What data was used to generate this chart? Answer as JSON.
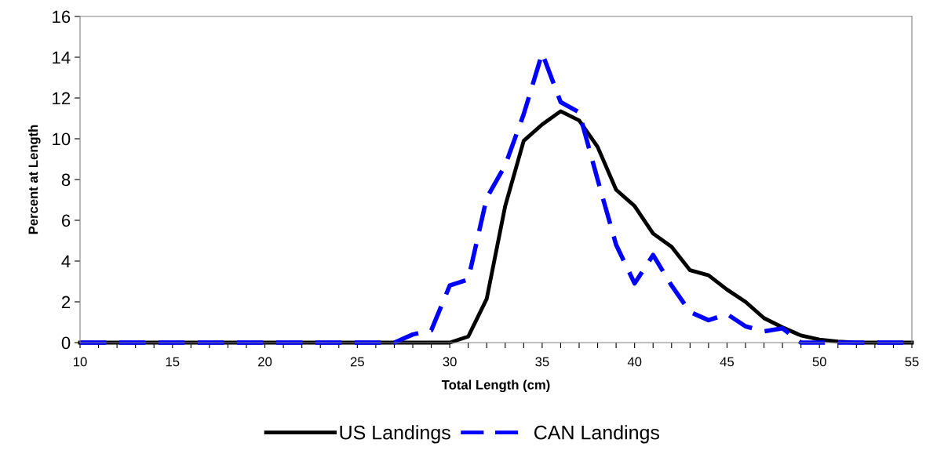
{
  "chart_data": {
    "type": "line",
    "xlabel": "Total Length (cm)",
    "ylabel": "Percent at Length",
    "x": [
      10,
      11,
      12,
      13,
      14,
      15,
      16,
      17,
      18,
      19,
      20,
      21,
      22,
      23,
      24,
      25,
      26,
      27,
      28,
      29,
      30,
      31,
      32,
      33,
      34,
      35,
      36,
      37,
      38,
      39,
      40,
      41,
      42,
      43,
      44,
      45,
      46,
      47,
      48,
      49,
      50,
      51,
      52,
      53,
      54,
      55
    ],
    "series": [
      {
        "name": "US Landings",
        "color": "#000000",
        "line_style": "solid",
        "values": [
          0,
          0,
          0,
          0,
          0,
          0,
          0,
          0,
          0,
          0,
          0,
          0,
          0,
          0,
          0,
          0,
          0,
          0,
          0,
          0,
          0,
          0.3,
          2.15,
          6.7,
          9.9,
          10.7,
          11.35,
          10.9,
          9.6,
          7.5,
          6.7,
          5.35,
          4.7,
          3.55,
          3.3,
          2.6,
          2.0,
          1.2,
          0.75,
          0.35,
          0.15,
          0.05,
          0,
          0,
          0,
          0
        ]
      },
      {
        "name": "CAN Landings",
        "color": "#0000ff",
        "line_style": "dashed",
        "values": [
          0,
          0,
          0,
          0,
          0,
          0,
          0,
          0,
          0,
          0,
          0,
          0,
          0,
          0,
          0,
          0,
          0,
          0,
          0.4,
          0.6,
          2.8,
          3.1,
          7.1,
          8.7,
          11.2,
          14.2,
          11.8,
          11.3,
          8.0,
          4.8,
          2.9,
          4.3,
          2.8,
          1.5,
          1.1,
          1.4,
          0.8,
          0.55,
          0.7,
          0,
          0,
          0,
          0,
          0,
          0,
          0
        ]
      }
    ],
    "xlim": [
      10,
      55
    ],
    "xticks": [
      10,
      {
        "value": 11,
        "label": null
      },
      {
        "value": 12,
        "label": null
      },
      {
        "value": 13,
        "label": null
      },
      {
        "value": 14,
        "label": null
      },
      15,
      {
        "value": 16,
        "label": null
      },
      {
        "value": 17,
        "label": null
      },
      {
        "value": 18,
        "label": null
      },
      {
        "value": 19,
        "label": null
      },
      20,
      {
        "value": 21,
        "label": null
      },
      {
        "value": 22,
        "label": null
      },
      {
        "value": 23,
        "label": null
      },
      {
        "value": 24,
        "label": null
      },
      25,
      {
        "value": 26,
        "label": null
      },
      {
        "value": 27,
        "label": null
      },
      {
        "value": 28,
        "label": null
      },
      {
        "value": 29,
        "label": null
      },
      30,
      {
        "value": 31,
        "label": null
      },
      {
        "value": 32,
        "label": null
      },
      {
        "value": 33,
        "label": null
      },
      {
        "value": 34,
        "label": null
      },
      35,
      {
        "value": 36,
        "label": null
      },
      {
        "value": 37,
        "label": null
      },
      {
        "value": 38,
        "label": null
      },
      {
        "value": 39,
        "label": null
      },
      40,
      {
        "value": 41,
        "label": null
      },
      {
        "value": 42,
        "label": null
      },
      {
        "value": 43,
        "label": null
      },
      {
        "value": 44,
        "label": null
      },
      45,
      {
        "value": 46,
        "label": null
      },
      {
        "value": 47,
        "label": null
      },
      {
        "value": 48,
        "label": null
      },
      {
        "value": 49,
        "label": null
      },
      50,
      {
        "value": 51,
        "label": null
      },
      {
        "value": 52,
        "label": null
      },
      {
        "value": 53,
        "label": null
      },
      {
        "value": 54,
        "label": null
      },
      55
    ],
    "ylim": [
      0,
      16
    ],
    "yticks": [
      0,
      2,
      4,
      6,
      8,
      10,
      12,
      14,
      16
    ],
    "grid": false,
    "legend": "bottom",
    "marker": "none"
  }
}
